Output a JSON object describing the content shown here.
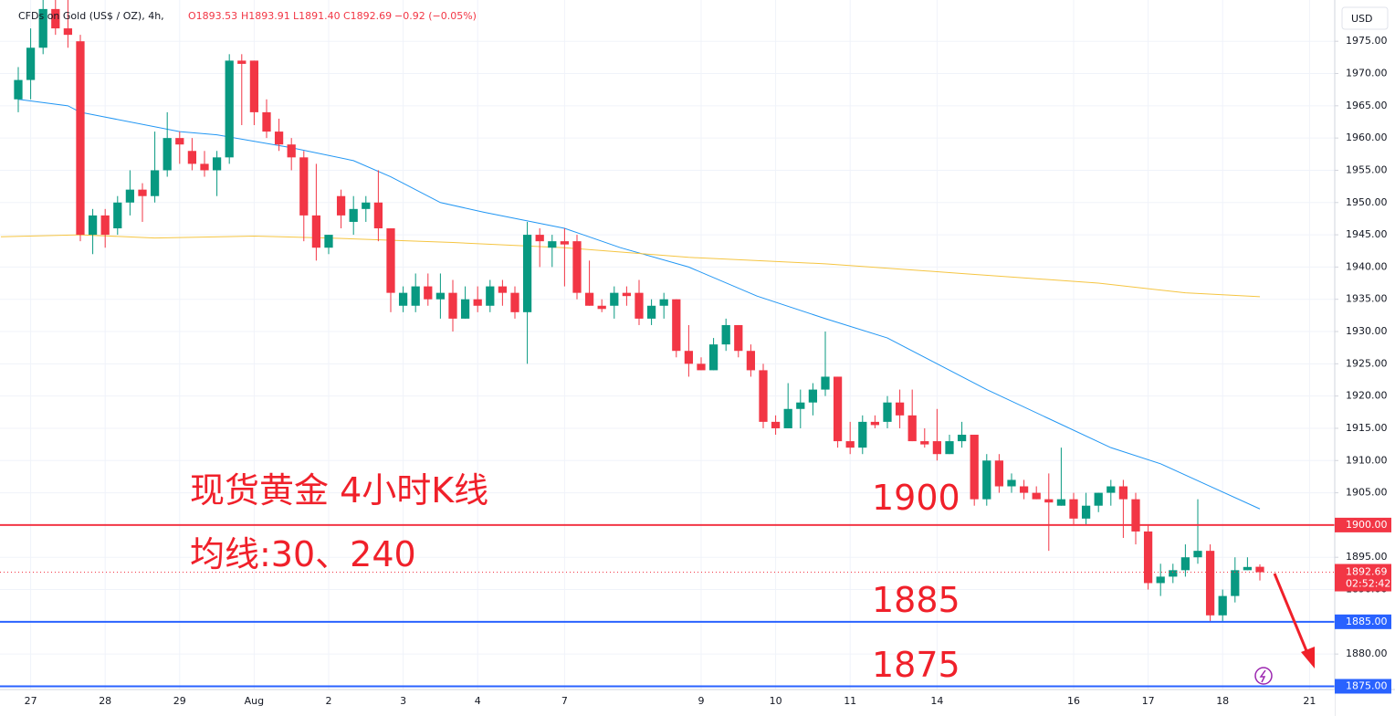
{
  "chart_data": {
    "type": "candlestick",
    "header": {
      "symbol": "CFDs on Gold (US$ / OZ), 4h,",
      "ohlc": [
        "O1893.53",
        "H1893.91",
        "L1891.40",
        "C1892.69",
        "−0.92 (−0.05%)"
      ]
    },
    "currency": "USD",
    "annotations": [
      "现货黄金 4小时K线",
      "均线:30、240",
      "1900",
      "1885",
      "1875"
    ],
    "up_color": "#089981",
    "down_color": "#f23645",
    "x": [
      0,
      1,
      2,
      3,
      4,
      5,
      6,
      7,
      8,
      9,
      10,
      11,
      12,
      13,
      14,
      15,
      16,
      17,
      18,
      19,
      20,
      21,
      22,
      23,
      24,
      25,
      26,
      27,
      28,
      29,
      30,
      31,
      32,
      33,
      34,
      35,
      36,
      37,
      38,
      39,
      40,
      41,
      42,
      43,
      44,
      45,
      46,
      47,
      48,
      49,
      50,
      51,
      52,
      53,
      54,
      55,
      56,
      57,
      58,
      59,
      60,
      61,
      62,
      63,
      64,
      65,
      66,
      67,
      68,
      69,
      70,
      71,
      72,
      73,
      74,
      75,
      76,
      77,
      78,
      79,
      80,
      81,
      82,
      83,
      84,
      85,
      86,
      87,
      88,
      89,
      90,
      91,
      92,
      93,
      94,
      95,
      96,
      97,
      98,
      99,
      100
    ],
    "open": [
      1966,
      1969,
      1974,
      1980,
      1977,
      1975,
      1945,
      1948,
      1946,
      1950,
      1952,
      1951,
      1955,
      1960,
      1958,
      1956,
      1955,
      1957,
      1972,
      1972,
      1964,
      1961,
      1959,
      1957,
      1948,
      1943,
      1951,
      1947,
      1949,
      1950,
      1946,
      1934,
      1934,
      1937,
      1935,
      1936,
      1932,
      1935,
      1934,
      1937,
      1936,
      1933,
      1945,
      1943,
      1944,
      1944,
      1936,
      1934,
      1934,
      1936,
      1936,
      1932,
      1934,
      1935,
      1927,
      1925,
      1924,
      1928,
      1931,
      1927,
      1924,
      1916,
      1915,
      1918,
      1919,
      1921,
      1923,
      1913,
      1912,
      1916,
      1916,
      1919,
      1917,
      1913,
      1913,
      1911,
      1913,
      1914,
      1904,
      1910,
      1906,
      1906,
      1905,
      1904,
      1903,
      1904,
      1901,
      1903,
      1905,
      1906,
      1904,
      1899,
      1891,
      1892,
      1893,
      1895,
      1896,
      1886,
      1889,
      1893,
      1893.53
    ],
    "high": [
      1971,
      1977,
      1982,
      1982,
      1982,
      1976,
      1949,
      1949,
      1951,
      1955,
      1953,
      1961,
      1964,
      1961,
      1960,
      1958,
      1958,
      1973,
      1973,
      1972,
      1966,
      1963,
      1960,
      1958,
      1956,
      1945,
      1952,
      1951,
      1951,
      1955,
      1946,
      1937,
      1939,
      1939,
      1939,
      1938,
      1937,
      1937,
      1938,
      1938,
      1937,
      1947,
      1946,
      1945,
      1946,
      1945,
      1941,
      1935,
      1937,
      1937,
      1938,
      1935,
      1936,
      1935,
      1931,
      1926,
      1929,
      1932,
      1931,
      1928,
      1925,
      1917,
      1922,
      1921,
      1922,
      1930,
      1923,
      1916,
      1917,
      1917,
      1920,
      1921,
      1921,
      1915,
      1918,
      1914,
      1916,
      1914,
      1911,
      1911,
      1908,
      1907,
      1906,
      1908,
      1912,
      1905,
      1905,
      1905,
      1907,
      1907,
      1905,
      1900,
      1894,
      1894,
      1897,
      1904,
      1897,
      1890,
      1895,
      1895,
      1893.91
    ],
    "low": [
      1964,
      1966,
      1973,
      1976,
      1974,
      1944,
      1942,
      1943,
      1945,
      1948,
      1947,
      1950,
      1954,
      1956,
      1955,
      1954,
      1951,
      1956,
      1962,
      1962,
      1960,
      1958,
      1955,
      1944,
      1941,
      1942,
      1946,
      1945,
      1947,
      1944,
      1933,
      1933,
      1933,
      1934,
      1932,
      1930,
      1932,
      1933,
      1933,
      1934,
      1932,
      1925,
      1940,
      1940,
      1937,
      1935,
      1934,
      1933,
      1932,
      1934,
      1931,
      1931,
      1932,
      1926,
      1923,
      1924,
      1924,
      1927,
      1926,
      1923,
      1915,
      1914,
      1915,
      1915,
      1917,
      1920,
      1912,
      1911,
      1911,
      1915,
      1915,
      1915,
      1913,
      1912,
      1910,
      1911,
      1912,
      1903,
      1903,
      1905,
      1905,
      1904,
      1904,
      1896,
      1903,
      1900,
      1900,
      1902,
      1903,
      1898,
      1897,
      1890,
      1889,
      1891,
      1892,
      1894,
      1885,
      1885,
      1888,
      1893,
      1891.4
    ],
    "close": [
      1969,
      1974,
      1980,
      1977,
      1976,
      1945,
      1948,
      1945,
      1950,
      1952,
      1951,
      1955,
      1960,
      1959,
      1956,
      1955,
      1957,
      1972,
      1971.5,
      1964,
      1961,
      1959,
      1957,
      1948,
      1943,
      1945,
      1948,
      1949,
      1950,
      1946,
      1936,
      1936,
      1937,
      1935,
      1936,
      1932,
      1935,
      1934,
      1937,
      1936,
      1933,
      1945,
      1944,
      1944,
      1943.5,
      1936,
      1934,
      1933.5,
      1936,
      1935.5,
      1932,
      1934,
      1935,
      1927,
      1925,
      1924,
      1928,
      1931,
      1927,
      1924,
      1916,
      1915,
      1918,
      1919,
      1921,
      1923,
      1913,
      1912,
      1916,
      1915.5,
      1919,
      1917,
      1913,
      1912.5,
      1911,
      1913,
      1914,
      1904,
      1910,
      1906,
      1907,
      1905,
      1904,
      1903.5,
      1904,
      1901,
      1903,
      1905,
      1906,
      1904,
      1899,
      1891,
      1892,
      1893,
      1895,
      1896,
      1886,
      1889,
      1893,
      1893.5,
      1892.69
    ],
    "lines": [
      {
        "color": "#2196f3",
        "x": [
          0,
          4,
          5,
          13,
          16,
          22,
          27,
          30,
          34,
          37.5,
          44,
          48.5,
          54,
          59.5,
          65,
          70,
          74,
          78,
          83,
          88,
          92,
          96,
          100
        ],
        "values": [
          1966,
          1965,
          1964,
          1961,
          1960.5,
          1958.5,
          1956.5,
          1954,
          1950,
          1948.5,
          1946,
          1943,
          1940,
          1935.5,
          1932,
          1929,
          1925,
          1921,
          1916.5,
          1912,
          1909.5,
          1906,
          1902.5
        ]
      },
      {
        "color": "#f5c542",
        "x": [
          -1.4,
          5,
          11,
          19,
          25,
          35,
          44,
          54,
          65,
          76,
          87,
          94,
          100
        ],
        "values": [
          1944.7,
          1945,
          1944.5,
          1944.8,
          1944.5,
          1943.8,
          1943,
          1941.5,
          1940.5,
          1939,
          1937.5,
          1936,
          1935.4
        ]
      }
    ],
    "hlines": [
      {
        "value": 1900,
        "label": "1900.00",
        "color": "#f23645"
      },
      {
        "value": 1885,
        "label": "1885.00",
        "color": "#2962ff"
      },
      {
        "value": 1875,
        "label": "1875.00",
        "color": "#2962ff"
      }
    ],
    "last_price": {
      "value": 1892.69,
      "label": "1892.69",
      "countdown": "02:52:42",
      "color": "#f23645"
    },
    "xlim": [
      -1.47,
      106.03
    ],
    "xticks": [
      {
        "value": 1,
        "label": "27"
      },
      {
        "value": 7,
        "label": "28"
      },
      {
        "value": 13,
        "label": "29"
      },
      {
        "value": 19,
        "label": "Aug"
      },
      {
        "value": 25,
        "label": "2"
      },
      {
        "value": 31,
        "label": "3"
      },
      {
        "value": 37,
        "label": "4"
      },
      {
        "value": 44,
        "label": "7"
      },
      {
        "value": 55,
        "label": "9"
      },
      {
        "value": 61,
        "label": "10"
      },
      {
        "value": 67,
        "label": "11"
      },
      {
        "value": 74,
        "label": "14"
      },
      {
        "value": 85,
        "label": "16"
      },
      {
        "value": 91,
        "label": "17"
      },
      {
        "value": 97,
        "label": "18"
      },
      {
        "value": 104,
        "label": "21"
      }
    ],
    "ylim": [
      1874.5,
      1981.4
    ],
    "yticks": [
      {
        "value": 1880,
        "label": "1880.00"
      },
      {
        "value": 1885,
        "label": "1885.00"
      },
      {
        "value": 1890,
        "label": "1890.00"
      },
      {
        "value": 1895,
        "label": "1895.00"
      },
      {
        "value": 1900,
        "label": "1900.00"
      },
      {
        "value": 1905,
        "label": "1905.00"
      },
      {
        "value": 1910,
        "label": "1910.00"
      },
      {
        "value": 1915,
        "label": "1915.00"
      },
      {
        "value": 1920,
        "label": "1920.00"
      },
      {
        "value": 1925,
        "label": "1925.00"
      },
      {
        "value": 1930,
        "label": "1930.00"
      },
      {
        "value": 1935,
        "label": "1935.00"
      },
      {
        "value": 1940,
        "label": "1940.00"
      },
      {
        "value": 1945,
        "label": "1945.00"
      },
      {
        "value": 1950,
        "label": "1950.00"
      },
      {
        "value": 1955,
        "label": "1955.00"
      },
      {
        "value": 1960,
        "label": "1960.00"
      },
      {
        "value": 1965,
        "label": "1965.00"
      },
      {
        "value": 1970,
        "label": "1970.00"
      },
      {
        "value": 1975,
        "label": "1975.00"
      }
    ],
    "grid": true
  }
}
